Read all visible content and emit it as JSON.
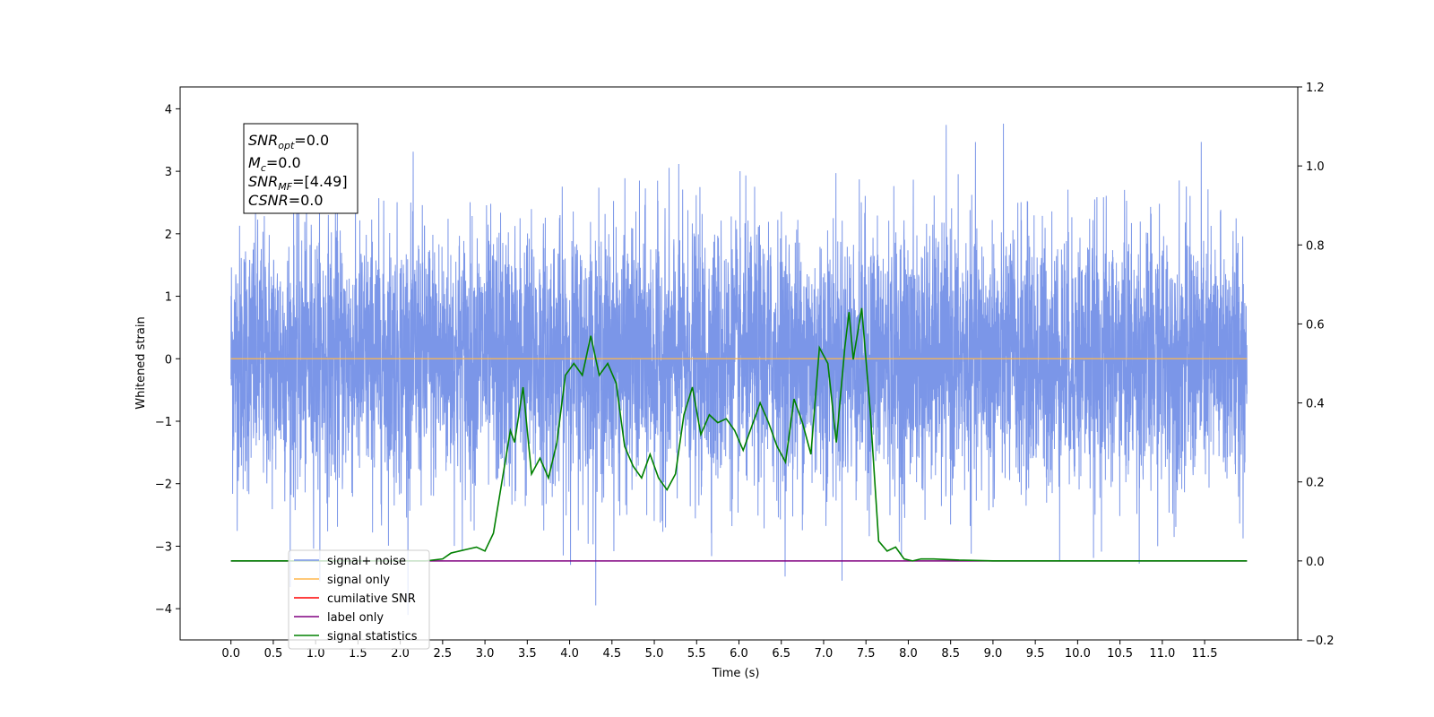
{
  "chart_data": {
    "type": "line",
    "xlabel": "Time (s)",
    "ylabel": "Whitened strain",
    "xlim": [
      -0.6,
      12.6
    ],
    "ylim": [
      -4.5,
      4.35
    ],
    "y2lim": [
      -0.2,
      1.2
    ],
    "x_ticks": [
      "0.0",
      "0.5",
      "1.0",
      "1.5",
      "2.0",
      "2.5",
      "3.0",
      "3.5",
      "4.0",
      "4.5",
      "5.0",
      "5.5",
      "6.0",
      "6.5",
      "7.0",
      "7.5",
      "8.0",
      "8.5",
      "9.0",
      "9.5",
      "10.0",
      "10.5",
      "11.0",
      "11.5"
    ],
    "y_ticks": [
      "4",
      "3",
      "2",
      "1",
      "0",
      "−1",
      "−2",
      "−3",
      "−4"
    ],
    "y2_ticks": [
      "1.2",
      "1.0",
      "0.8",
      "0.6",
      "0.4",
      "0.2",
      "0.0",
      "−0.2"
    ],
    "grid": false,
    "legend_position": "lower-left",
    "info_box": {
      "snr_opt_main": "SNR",
      "snr_opt_sub": "opt",
      "snr_opt_val": "=0.0",
      "mc_main": "M",
      "mc_sub": "c",
      "mc_val": "=0.0",
      "snr_mf_main": "SNR",
      "snr_mf_sub": "MF",
      "snr_mf_val": "=[4.49]",
      "csnr_main": "CSNR",
      "csnr_val": "=0.0"
    },
    "series": [
      {
        "name": "signal+ noise",
        "color": "#7b96e8",
        "kind": "noise",
        "x_range": [
          0.0,
          12.0
        ],
        "amplitude_range": [
          -4.1,
          3.95
        ],
        "note_values": "random Gaussian noise, peaks up to ~3.95, troughs down to ~-4.1"
      },
      {
        "name": "signal only",
        "color": "#ffb74d",
        "x": [
          0.0,
          12.0
        ],
        "y": [
          0.0,
          0.0
        ]
      },
      {
        "name": "cumilative SNR",
        "color": "#ff0000",
        "x": [],
        "y": []
      },
      {
        "name": "label only",
        "color": "#800080",
        "axis": "right",
        "x": [
          0.0,
          12.0
        ],
        "y": [
          0.0,
          0.0
        ]
      },
      {
        "name": "signal statistics",
        "color": "#008000",
        "axis": "right",
        "x": [
          0.0,
          2.3,
          2.5,
          2.6,
          2.7,
          2.8,
          2.9,
          3.0,
          3.1,
          3.2,
          3.3,
          3.35,
          3.45,
          3.55,
          3.65,
          3.75,
          3.85,
          3.95,
          4.05,
          4.15,
          4.25,
          4.35,
          4.45,
          4.55,
          4.65,
          4.75,
          4.85,
          4.95,
          5.05,
          5.15,
          5.25,
          5.35,
          5.45,
          5.55,
          5.65,
          5.75,
          5.85,
          5.95,
          6.05,
          6.15,
          6.25,
          6.35,
          6.45,
          6.55,
          6.65,
          6.75,
          6.85,
          6.95,
          7.05,
          7.15,
          7.25,
          7.3,
          7.35,
          7.45,
          7.55,
          7.65,
          7.75,
          7.85,
          7.95,
          8.05,
          8.15,
          8.3,
          8.6,
          9.0,
          12.0
        ],
        "y": [
          0.0,
          0.0,
          0.005,
          0.02,
          0.025,
          0.03,
          0.035,
          0.025,
          0.07,
          0.2,
          0.33,
          0.3,
          0.44,
          0.22,
          0.26,
          0.21,
          0.3,
          0.47,
          0.5,
          0.47,
          0.57,
          0.47,
          0.5,
          0.45,
          0.29,
          0.24,
          0.21,
          0.27,
          0.21,
          0.18,
          0.22,
          0.37,
          0.44,
          0.32,
          0.37,
          0.35,
          0.36,
          0.33,
          0.28,
          0.34,
          0.4,
          0.35,
          0.29,
          0.25,
          0.41,
          0.35,
          0.27,
          0.54,
          0.5,
          0.3,
          0.54,
          0.63,
          0.51,
          0.64,
          0.38,
          0.05,
          0.025,
          0.035,
          0.005,
          0.0,
          0.005,
          0.005,
          0.002,
          0.0,
          0.0
        ]
      }
    ]
  }
}
